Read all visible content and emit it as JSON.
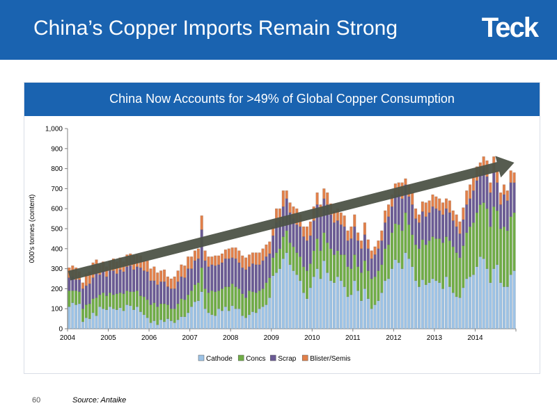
{
  "slide": {
    "title": "China’s Copper Imports Remain Strong",
    "logo": "Teck",
    "page_number": "60",
    "source": "Source: Antaike"
  },
  "colors": {
    "header_bg": "#1a63b0",
    "cathode": "#9dc3e6",
    "concs": "#70ad47",
    "scrap": "#6b5b95",
    "blister": "#e2804a",
    "trend_arrow": "#4d5347"
  },
  "chart_data": {
    "type": "bar",
    "stacked": true,
    "title": "China Now Accounts for >49% of Global Copper Consumption",
    "xlabel": "",
    "ylabel": "000's tonnes (content)",
    "ylim": [
      0,
      1000
    ],
    "yticks": [
      "0",
      "100",
      "200",
      "300",
      "400",
      "500",
      "600",
      "700",
      "800",
      "900",
      "1,000"
    ],
    "xticks": [
      "2004",
      "2005",
      "2006",
      "2007",
      "2008",
      "2009",
      "2010",
      "2011",
      "2012",
      "2013",
      "2014"
    ],
    "legend_position": "bottom",
    "period": "monthly, Jan 2004 – Dec 2014",
    "categories": [
      "2004-01",
      "2004-02",
      "2004-03",
      "2004-04",
      "2004-05",
      "2004-06",
      "2004-07",
      "2004-08",
      "2004-09",
      "2004-10",
      "2004-11",
      "2004-12",
      "2005-01",
      "2005-02",
      "2005-03",
      "2005-04",
      "2005-05",
      "2005-06",
      "2005-07",
      "2005-08",
      "2005-09",
      "2005-10",
      "2005-11",
      "2005-12",
      "2006-01",
      "2006-02",
      "2006-03",
      "2006-04",
      "2006-05",
      "2006-06",
      "2006-07",
      "2006-08",
      "2006-09",
      "2006-10",
      "2006-11",
      "2006-12",
      "2007-01",
      "2007-02",
      "2007-03",
      "2007-04",
      "2007-05",
      "2007-06",
      "2007-07",
      "2007-08",
      "2007-09",
      "2007-10",
      "2007-11",
      "2007-12",
      "2008-01",
      "2008-02",
      "2008-03",
      "2008-04",
      "2008-05",
      "2008-06",
      "2008-07",
      "2008-08",
      "2008-09",
      "2008-10",
      "2008-11",
      "2008-12",
      "2009-01",
      "2009-02",
      "2009-03",
      "2009-04",
      "2009-05",
      "2009-06",
      "2009-07",
      "2009-08",
      "2009-09",
      "2009-10",
      "2009-11",
      "2009-12",
      "2010-01",
      "2010-02",
      "2010-03",
      "2010-04",
      "2010-05",
      "2010-06",
      "2010-07",
      "2010-08",
      "2010-09",
      "2010-10",
      "2010-11",
      "2010-12",
      "2011-01",
      "2011-02",
      "2011-03",
      "2011-04",
      "2011-05",
      "2011-06",
      "2011-07",
      "2011-08",
      "2011-09",
      "2011-10",
      "2011-11",
      "2011-12",
      "2012-01",
      "2012-02",
      "2012-03",
      "2012-04",
      "2012-05",
      "2012-06",
      "2012-07",
      "2012-08",
      "2012-09",
      "2012-10",
      "2012-11",
      "2012-12",
      "2013-01",
      "2013-02",
      "2013-03",
      "2013-04",
      "2013-05",
      "2013-06",
      "2013-07",
      "2013-08",
      "2013-09",
      "2013-10",
      "2013-11",
      "2013-12",
      "2014-01",
      "2014-02",
      "2014-03",
      "2014-04",
      "2014-05",
      "2014-06",
      "2014-07",
      "2014-08",
      "2014-09",
      "2014-10",
      "2014-11",
      "2014-12"
    ],
    "series": [
      {
        "name": "Cathode",
        "values": [
          110,
          130,
          120,
          125,
          35,
          55,
          50,
          80,
          65,
          110,
          100,
          95,
          110,
          100,
          95,
          105,
          90,
          120,
          115,
          95,
          110,
          85,
          70,
          55,
          30,
          40,
          20,
          45,
          35,
          50,
          40,
          30,
          45,
          60,
          60,
          80,
          110,
          135,
          140,
          185,
          100,
          80,
          70,
          65,
          100,
          90,
          110,
          90,
          115,
          100,
          100,
          65,
          55,
          70,
          85,
          80,
          100,
          110,
          120,
          155,
          265,
          280,
          300,
          350,
          380,
          320,
          290,
          270,
          240,
          180,
          150,
          205,
          260,
          300,
          250,
          340,
          280,
          240,
          230,
          260,
          240,
          210,
          160,
          170,
          240,
          190,
          140,
          200,
          150,
          100,
          120,
          140,
          180,
          240,
          250,
          300,
          345,
          330,
          300,
          380,
          350,
          310,
          240,
          210,
          245,
          220,
          230,
          250,
          240,
          230,
          200,
          260,
          210,
          180,
          160,
          155,
          205,
          250,
          260,
          270,
          310,
          360,
          350,
          300,
          230,
          300,
          320,
          230,
          210,
          210,
          270,
          290
        ]
      },
      {
        "name": "Concs",
        "values": [
          80,
          60,
          70,
          60,
          65,
          65,
          75,
          70,
          90,
          60,
          80,
          70,
          70,
          70,
          80,
          75,
          85,
          70,
          70,
          90,
          80,
          80,
          90,
          90,
          90,
          90,
          90,
          80,
          90,
          70,
          60,
          70,
          80,
          90,
          85,
          90,
          80,
          85,
          90,
          120,
          100,
          100,
          120,
          120,
          90,
          110,
          100,
          120,
          110,
          110,
          100,
          110,
          100,
          120,
          100,
          100,
          90,
          90,
          110,
          100,
          90,
          100,
          100,
          110,
          110,
          110,
          120,
          110,
          120,
          130,
          140,
          120,
          130,
          150,
          140,
          140,
          150,
          160,
          140,
          130,
          130,
          160,
          150,
          130,
          130,
          120,
          140,
          140,
          140,
          150,
          140,
          150,
          140,
          160,
          170,
          180,
          180,
          190,
          190,
          200,
          170,
          160,
          180,
          190,
          200,
          200,
          210,
          210,
          210,
          220,
          230,
          200,
          230,
          230,
          220,
          200,
          210,
          230,
          250,
          260,
          270,
          260,
          280,
          300,
          280,
          310,
          270,
          270,
          300,
          280,
          290,
          290
        ]
      },
      {
        "name": "Scrap",
        "values": [
          65,
          70,
          55,
          60,
          100,
          95,
          100,
          105,
          120,
          100,
          110,
          95,
          110,
          120,
          100,
          115,
          110,
          120,
          130,
          110,
          120,
          140,
          130,
          140,
          120,
          110,
          110,
          110,
          110,
          90,
          100,
          100,
          110,
          110,
          110,
          130,
          110,
          120,
          120,
          190,
          140,
          130,
          130,
          130,
          130,
          130,
          140,
          140,
          130,
          140,
          130,
          130,
          140,
          120,
          140,
          140,
          130,
          140,
          130,
          120,
          110,
          150,
          140,
          150,
          160,
          150,
          140,
          140,
          150,
          150,
          150,
          140,
          150,
          170,
          170,
          170,
          190,
          170,
          160,
          150,
          150,
          140,
          130,
          150,
          140,
          130,
          120,
          130,
          110,
          100,
          110,
          110,
          120,
          130,
          140,
          130,
          140,
          150,
          160,
          140,
          140,
          150,
          130,
          130,
          140,
          140,
          140,
          150,
          150,
          140,
          140,
          140,
          140,
          130,
          130,
          120,
          130,
          140,
          140,
          160,
          160,
          150,
          170,
          160,
          170,
          170,
          140,
          120,
          160,
          150,
          170,
          150
        ]
      },
      {
        "name": "Blister/Semis",
        "values": [
          50,
          55,
          60,
          40,
          30,
          60,
          60,
          75,
          70,
          50,
          45,
          50,
          50,
          60,
          60,
          60,
          50,
          60,
          60,
          70,
          60,
          60,
          50,
          55,
          60,
          70,
          60,
          55,
          60,
          50,
          50,
          60,
          55,
          60,
          60,
          60,
          60,
          50,
          50,
          70,
          50,
          50,
          40,
          50,
          45,
          45,
          45,
          50,
          50,
          55,
          60,
          60,
          60,
          60,
          55,
          60,
          60,
          60,
          60,
          60,
          45,
          70,
          60,
          80,
          40,
          50,
          60,
          80,
          60,
          50,
          70,
          70,
          70,
          60,
          60,
          50,
          60,
          55,
          60,
          60,
          60,
          55,
          50,
          60,
          60,
          40,
          40,
          60,
          45,
          40,
          40,
          40,
          50,
          60,
          60,
          60,
          60,
          60,
          80,
          30,
          60,
          60,
          50,
          40,
          50,
          70,
          60,
          60,
          60,
          60,
          60,
          50,
          60,
          50,
          60,
          60,
          60,
          70,
          70,
          70,
          70,
          60,
          60,
          80,
          50,
          80,
          60,
          60,
          50,
          50,
          60,
          50
        ]
      }
    ],
    "trend_arrow": {
      "from": [
        "2004-01",
        265
      ],
      "to": [
        "2014-12",
        830
      ]
    }
  }
}
